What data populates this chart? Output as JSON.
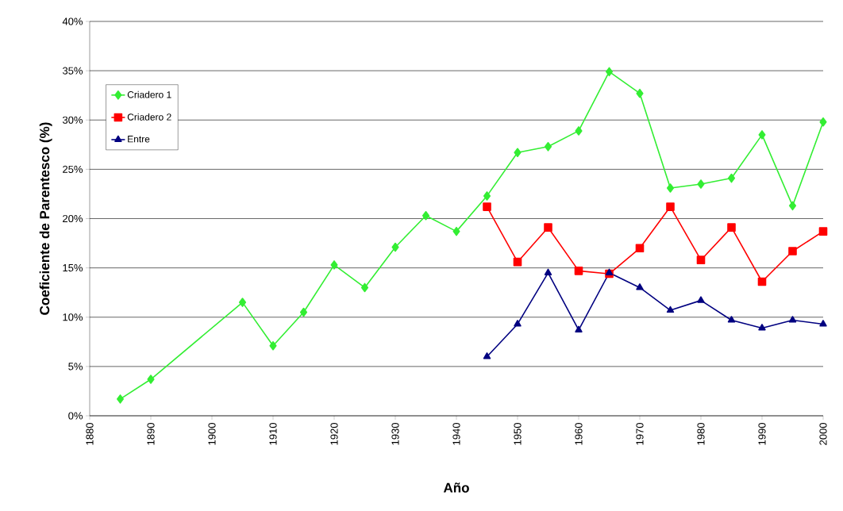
{
  "chart_data": {
    "type": "line",
    "xlabel": "Año",
    "ylabel": "Coeficiente de Parentesco (%)",
    "xlim": [
      1880,
      2000
    ],
    "xticks": [
      1880,
      1890,
      1900,
      1910,
      1920,
      1930,
      1940,
      1950,
      1960,
      1970,
      1980,
      1990,
      2000
    ],
    "ylim": [
      0,
      40
    ],
    "yticks": [
      {
        "value": 0,
        "label": "0%"
      },
      {
        "value": 5,
        "label": "5%"
      },
      {
        "value": 10,
        "label": "10%"
      },
      {
        "value": 15,
        "label": "15%"
      },
      {
        "value": 20,
        "label": "20%"
      },
      {
        "value": 25,
        "label": "25%"
      },
      {
        "value": 30,
        "label": "30%"
      },
      {
        "value": 35,
        "label": "35%"
      },
      {
        "value": 40,
        "label": "40%"
      }
    ],
    "grid": "y",
    "legend": "top left",
    "line_style": "solid",
    "series": [
      {
        "name": "Criadero 1",
        "color": "#33ee33",
        "marker": "diamond",
        "x": [
          1885,
          1890,
          1905,
          1910,
          1915,
          1920,
          1925,
          1930,
          1935,
          1940,
          1945,
          1950,
          1955,
          1960,
          1965,
          1970,
          1975,
          1980,
          1985,
          1990,
          1995,
          2000
        ],
        "values": [
          1.7,
          3.7,
          11.5,
          7.1,
          10.5,
          15.3,
          13.0,
          17.1,
          20.3,
          18.7,
          22.3,
          26.7,
          27.3,
          28.9,
          34.9,
          32.7,
          23.1,
          23.5,
          24.1,
          28.5,
          21.3,
          29.8
        ]
      },
      {
        "name": "Criadero 2",
        "color": "#ff0000",
        "marker": "square",
        "x": [
          1945,
          1950,
          1955,
          1960,
          1965,
          1970,
          1975,
          1980,
          1985,
          1990,
          1995,
          2000
        ],
        "values": [
          21.2,
          15.6,
          19.1,
          14.7,
          14.4,
          17.0,
          21.2,
          15.8,
          19.1,
          13.6,
          16.7,
          18.7
        ]
      },
      {
        "name": "Entre",
        "color": "#000080",
        "marker": "triangle",
        "x": [
          1945,
          1950,
          1955,
          1960,
          1965,
          1970,
          1975,
          1980,
          1985,
          1990,
          1995,
          2000
        ],
        "values": [
          6.0,
          9.3,
          14.5,
          8.7,
          14.5,
          13.0,
          10.7,
          11.7,
          9.7,
          8.9,
          9.7,
          9.3
        ]
      }
    ]
  }
}
